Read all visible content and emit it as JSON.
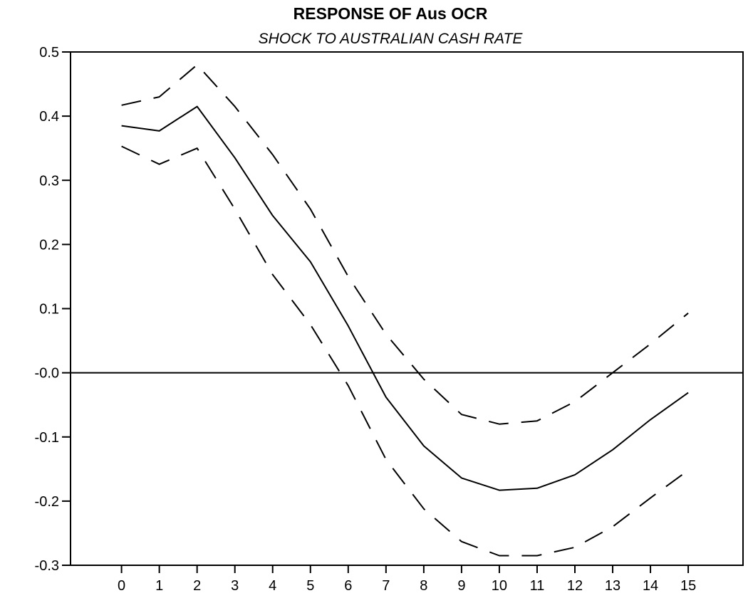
{
  "chart_data": {
    "type": "line",
    "title": "RESPONSE OF Aus OCR",
    "subtitle": "SHOCK TO AUSTRALIAN CASH RATE",
    "xlabel": "",
    "ylabel": "",
    "x": [
      0,
      1,
      2,
      3,
      4,
      5,
      6,
      7,
      8,
      9,
      10,
      11,
      12,
      13,
      14,
      15
    ],
    "x_tick_labels": [
      "0",
      "1",
      "2",
      "3",
      "4",
      "5",
      "6",
      "7",
      "8",
      "9",
      "10",
      "11",
      "12",
      "13",
      "14",
      "15"
    ],
    "y_tick_labels": [
      "0.5",
      "0.4",
      "0.3",
      "0.2",
      "0.1",
      "-0.0",
      "-0.1",
      "-0.2",
      "-0.3"
    ],
    "y_ticks": [
      0.5,
      0.4,
      0.3,
      0.2,
      0.1,
      0.0,
      -0.1,
      -0.2,
      -0.3
    ],
    "xlim": [
      -1.35,
      16.45
    ],
    "ylim": [
      -0.3,
      0.5
    ],
    "grid": false,
    "zero_line": true,
    "series": [
      {
        "style": "solid",
        "values": [
          0.385,
          0.377,
          0.415,
          0.335,
          0.245,
          0.173,
          0.073,
          -0.038,
          -0.114,
          -0.164,
          -0.183,
          -0.18,
          -0.159,
          -0.12,
          -0.073,
          -0.031
        ]
      },
      {
        "style": "dashed",
        "values": [
          0.417,
          0.43,
          0.48,
          0.415,
          0.34,
          0.255,
          0.15,
          0.06,
          -0.01,
          -0.065,
          -0.08,
          -0.075,
          -0.045,
          0.0,
          0.045,
          0.093
        ]
      },
      {
        "style": "dashed",
        "values": [
          0.353,
          0.325,
          0.35,
          0.255,
          0.153,
          0.075,
          -0.02,
          -0.135,
          -0.212,
          -0.263,
          -0.285,
          -0.285,
          -0.272,
          -0.24,
          -0.195,
          -0.152
        ]
      }
    ]
  }
}
